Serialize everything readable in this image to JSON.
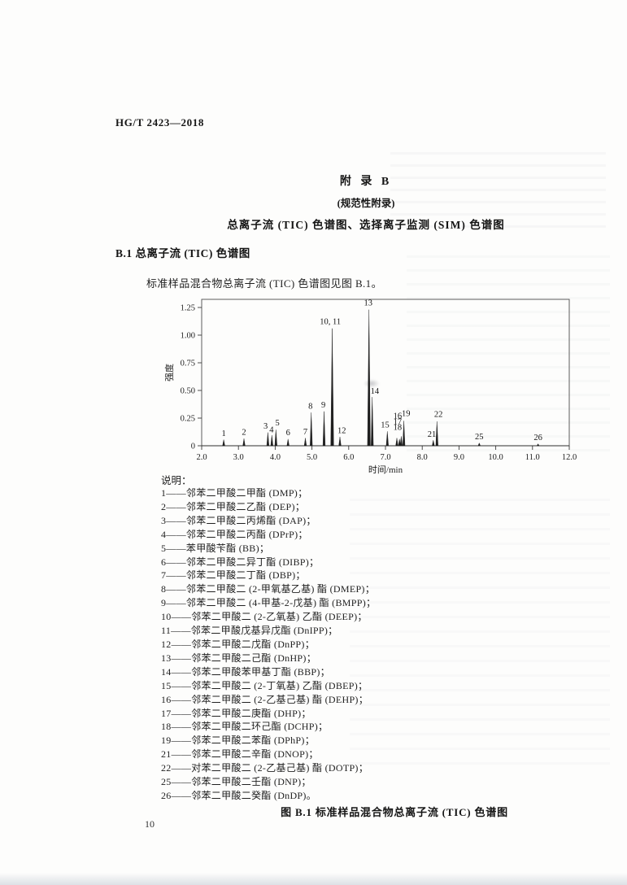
{
  "page": {
    "doc_code": "HG/T 2423—2018",
    "page_number": "10"
  },
  "appendix": {
    "title": "附 录 B",
    "subtitle": "(规范性附录)",
    "heading": "总离子流 (TIC) 色谱图、选择离子监测 (SIM) 色谱图"
  },
  "section": {
    "heading": "B.1 总离子流 (TIC) 色谱图",
    "paragraph": "标准样品混合物总离子流 (TIC) 色谱图见图 B.1。"
  },
  "figure": {
    "caption": "图 B.1 标准样品混合物总离子流 (TIC) 色谱图"
  },
  "legend": {
    "label": "说明：",
    "items": [
      "1——邻苯二甲酸二甲酯 (DMP)；",
      "2——邻苯二甲酸二乙酯 (DEP)；",
      "3——邻苯二甲酸二丙烯酯 (DAP)；",
      "4——邻苯二甲酸二丙酯 (DPrP)；",
      "5——苯甲酸苄酯 (BB)；",
      "6——邻苯二甲酸二异丁酯 (DIBP)；",
      "7——邻苯二甲酸二丁酯 (DBP)；",
      "8——邻苯二甲酸二 (2-甲氧基乙基) 酯 (DMEP)；",
      "9——邻苯二甲酸二 (4-甲基-2-戊基) 酯 (BMPP)；",
      "10——邻苯二甲酸二 (2-乙氧基) 乙酯 (DEEP)；",
      "11——邻苯二甲酸戊基异戊酯 (DnIPP)；",
      "12——邻苯二甲酸二戊酯 (DnPP)；",
      "13——邻苯二甲酸二己酯 (DnHP)；",
      "14——邻苯二甲酸苯甲基丁酯 (BBP)；",
      "15——邻苯二甲酸二 (2-丁氧基) 乙酯 (DBEP)；",
      "16——邻苯二甲酸二 (2-乙基己基) 酯 (DEHP)；",
      "17——邻苯二甲酸二庚酯 (DHP)；",
      "18——邻苯二甲酸二环己酯 (DCHP)；",
      "19——邻苯二甲酸二苯酯 (DPhP)；",
      "21——邻苯二甲酸二辛酯 (DNOP)；",
      "22——对苯二甲酸二 (2-乙基己基) 酯 (DOTP)；",
      "25——邻苯二甲酸二壬酯 (DNP)；",
      "26——邻苯二甲酸二癸酯 (DnDP)。"
    ]
  },
  "chart_data": {
    "type": "line",
    "title": "",
    "xlabel": "时间/min",
    "ylabel": "强度",
    "xlim": [
      2.0,
      12.0
    ],
    "ylim": [
      0,
      1.32
    ],
    "grid": false,
    "frame": true,
    "x_ticks": [
      "2.0",
      "3.0",
      "4.0",
      "5.0",
      "6.0",
      "7.0",
      "8.0",
      "9.0",
      "10.0",
      "11.0",
      "12.0"
    ],
    "y_ticks": [
      "0",
      "0.25",
      "0.50",
      "0.75",
      "1.00",
      "1.25"
    ],
    "peaks": [
      {
        "label": "1",
        "time": 2.6,
        "intensity": 0.055
      },
      {
        "label": "2",
        "time": 3.15,
        "intensity": 0.065
      },
      {
        "label": "3",
        "time": 3.8,
        "intensity": 0.12
      },
      {
        "label": "4",
        "time": 3.91,
        "intensity": 0.095
      },
      {
        "label": "5",
        "time": 4.02,
        "intensity": 0.145
      },
      {
        "label": "6",
        "time": 4.35,
        "intensity": 0.06
      },
      {
        "label": "7",
        "time": 4.82,
        "intensity": 0.07
      },
      {
        "label": "8",
        "time": 4.98,
        "intensity": 0.3
      },
      {
        "label": "9",
        "time": 5.33,
        "intensity": 0.31
      },
      {
        "label": "10, 11",
        "time": 5.55,
        "intensity": 1.06
      },
      {
        "label": "12",
        "time": 5.76,
        "intensity": 0.08
      },
      {
        "label": "13",
        "time": 6.55,
        "intensity": 1.23
      },
      {
        "label": "14",
        "time": 6.64,
        "intensity": 0.44
      },
      {
        "label": "15",
        "time": 7.05,
        "intensity": 0.13
      },
      {
        "label": "16",
        "time": 7.31,
        "intensity": 0.07
      },
      {
        "label": "17",
        "time": 7.38,
        "intensity": 0.06
      },
      {
        "label": "18",
        "time": 7.43,
        "intensity": 0.085
      },
      {
        "label": "19",
        "time": 7.5,
        "intensity": 0.225
      },
      {
        "label": "21",
        "time": 8.3,
        "intensity": 0.05
      },
      {
        "label": "22",
        "time": 8.4,
        "intensity": 0.22
      },
      {
        "label": "25",
        "time": 9.55,
        "intensity": 0.025
      },
      {
        "label": "26",
        "time": 11.15,
        "intensity": 0.018
      }
    ],
    "peak_labels": [
      {
        "text": "1",
        "x": 2.6,
        "y": 0.075
      },
      {
        "text": "2",
        "x": 3.15,
        "y": 0.085
      },
      {
        "text": "3",
        "x": 3.74,
        "y": 0.14
      },
      {
        "text": "4",
        "x": 3.9,
        "y": 0.105
      },
      {
        "text": "5",
        "x": 4.06,
        "y": 0.17
      },
      {
        "text": "6",
        "x": 4.35,
        "y": 0.08
      },
      {
        "text": "7",
        "x": 4.82,
        "y": 0.09
      },
      {
        "text": "8",
        "x": 4.96,
        "y": 0.32
      },
      {
        "text": "9",
        "x": 5.31,
        "y": 0.33
      },
      {
        "text": "10, 11",
        "x": 5.5,
        "y": 1.085
      },
      {
        "text": "12",
        "x": 5.81,
        "y": 0.1
      },
      {
        "text": "13",
        "x": 6.53,
        "y": 1.255
      },
      {
        "text": "14",
        "x": 6.71,
        "y": 0.455
      },
      {
        "text": "15",
        "x": 6.99,
        "y": 0.15
      },
      {
        "text": "16",
        "x": 7.33,
        "y": 0.232
      },
      {
        "text": "17",
        "x": 7.33,
        "y": 0.18
      },
      {
        "text": "18",
        "x": 7.33,
        "y": 0.128
      },
      {
        "text": "19",
        "x": 7.56,
        "y": 0.255
      },
      {
        "text": "21",
        "x": 8.26,
        "y": 0.068
      },
      {
        "text": "22",
        "x": 8.44,
        "y": 0.245
      },
      {
        "text": "25",
        "x": 9.55,
        "y": 0.045
      },
      {
        "text": "26",
        "x": 11.15,
        "y": 0.038
      }
    ]
  }
}
